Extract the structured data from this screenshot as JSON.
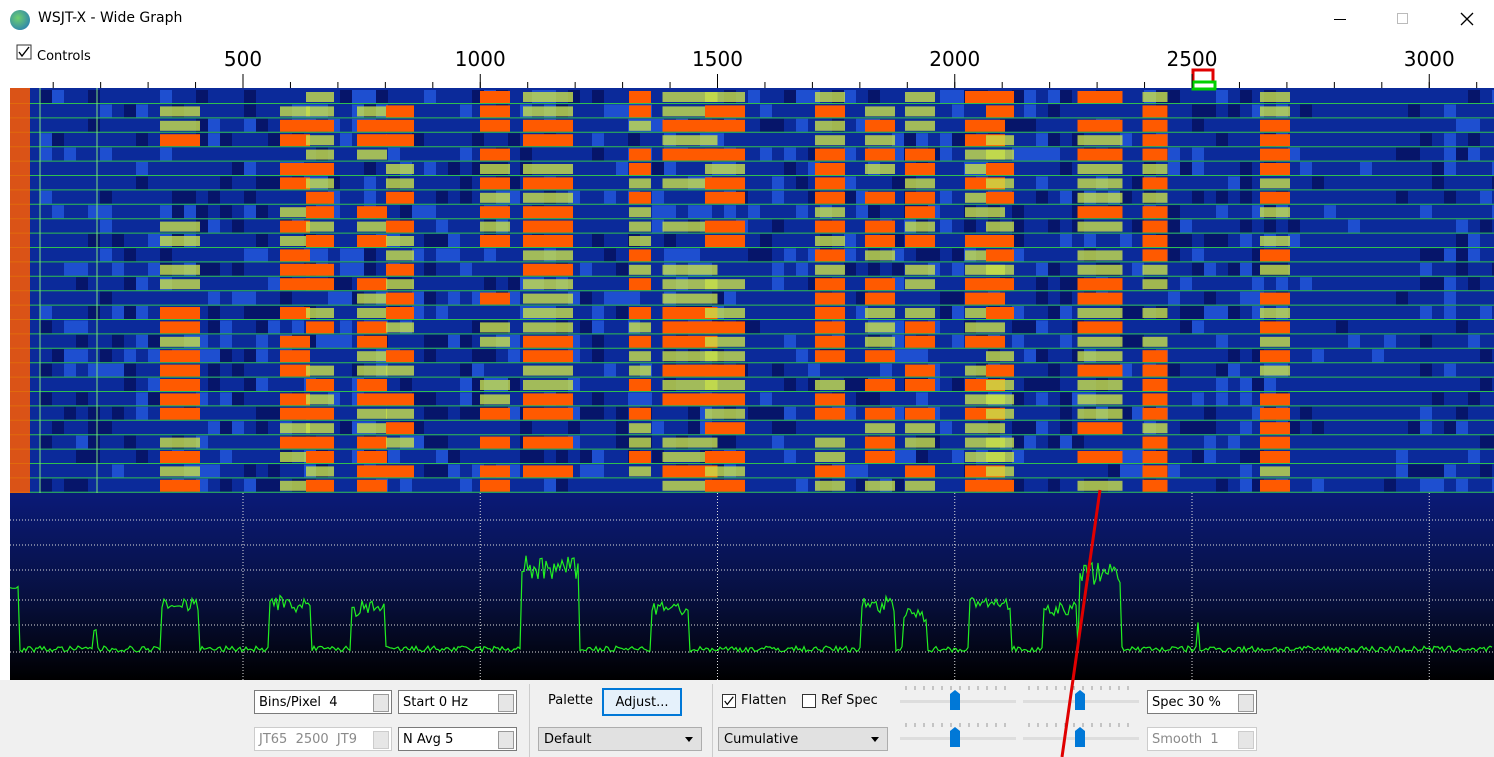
{
  "window": {
    "title": "WSJT-X - Wide Graph"
  },
  "scale": {
    "controls_label": "Controls",
    "ticks": [
      500,
      1000,
      1500,
      2000,
      2500,
      3000
    ]
  },
  "controls": {
    "bins_per_pixel": "Bins/Pixel  4",
    "start": "Start 0 Hz",
    "palette_label": "Palette",
    "adjust_button": "Adjust...",
    "flatten": "Flatten",
    "ref_spec": "Ref Spec",
    "spec": "Spec 30 %",
    "mode": "JT65  2500  JT9",
    "n_avg": "N Avg 5",
    "palette": "Default",
    "spectrum": "Cumulative",
    "smooth": "Smooth  1"
  }
}
